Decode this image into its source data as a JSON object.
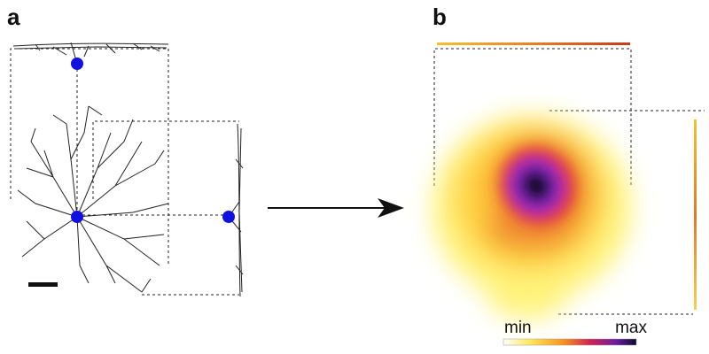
{
  "panels": [
    {
      "label": "a"
    },
    {
      "label": "b"
    }
  ],
  "colorbar": {
    "min_label": "min",
    "max_label": "max"
  }
}
